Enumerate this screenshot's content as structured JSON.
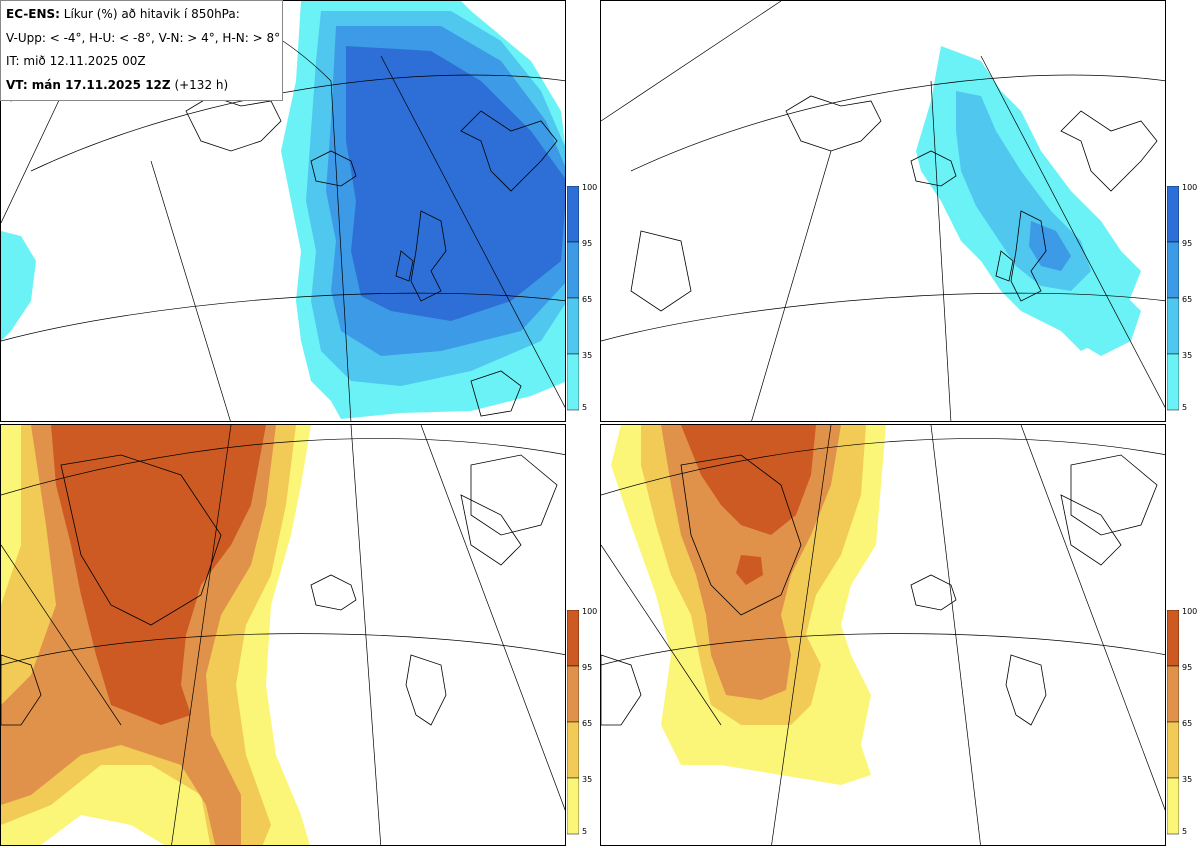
{
  "header": {
    "model": "EC-ENS:",
    "title_rest": "Líkur (%) að hitavik í 850hPa:",
    "legend_line": "V-Upp: < -4°, H-U: < -8°, V-N: > 4°, H-N: > 8°",
    "it_line": "IT: mið 12.11.2025 00Z",
    "vt_label": "VT: mán 17.11.2025 12Z",
    "vt_offset": "(+132 h)"
  },
  "colors": {
    "blue_levels": [
      "#6af2f7",
      "#4fc7ef",
      "#3c9ae6",
      "#2d6fd6"
    ],
    "orange_levels": [
      "#fbf678",
      "#f2cb57",
      "#e0924a",
      "#cd5a23"
    ],
    "map_lines": "#000000"
  },
  "colorbar_ticks": [
    "100",
    "95",
    "65",
    "35",
    "5"
  ],
  "panels": [
    {
      "name": "V-Upp",
      "variable": "probability anomaly < -4°",
      "palette": "blue"
    },
    {
      "name": "H-U",
      "variable": "probability anomaly < -8°",
      "palette": "blue"
    },
    {
      "name": "V-N",
      "variable": "probability anomaly > 4°",
      "palette": "orange"
    },
    {
      "name": "H-N",
      "variable": "probability anomaly > 8°",
      "palette": "orange"
    }
  ]
}
